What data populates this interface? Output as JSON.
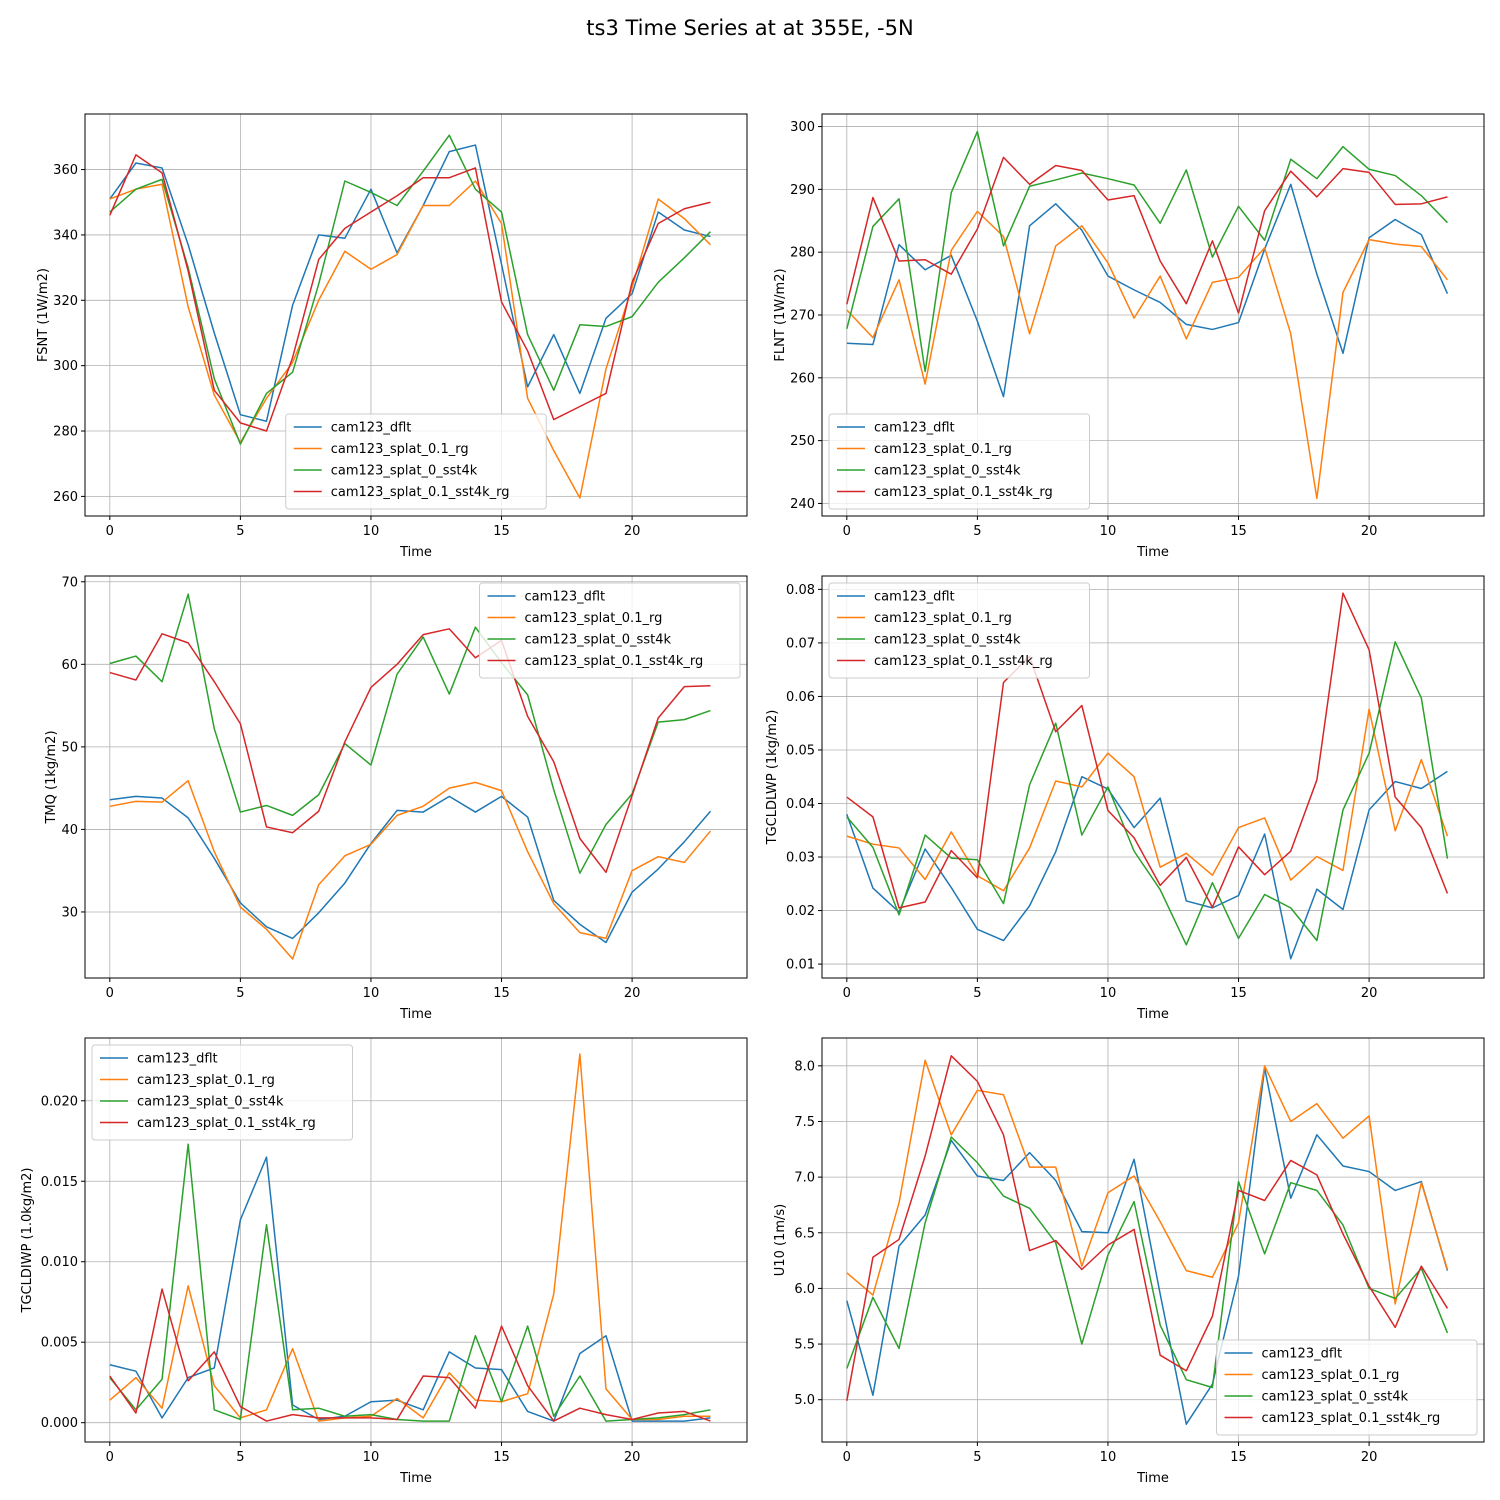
{
  "figure": {
    "title": "ts3 Time Series at at 355E, -5N"
  },
  "series_colors": [
    "#1f77b4",
    "#ff7f0e",
    "#2ca02c",
    "#d62728"
  ],
  "chart_data": [
    {
      "type": "line",
      "title": "",
      "xlabel": "Time",
      "ylabel": "FSNT (1W/m2)",
      "xlim": [
        -0.95,
        24.4
      ],
      "ylim": [
        254,
        377
      ],
      "xticks": [
        0,
        5,
        10,
        15,
        20
      ],
      "xtick_labels": [
        "0",
        "5",
        "10",
        "15",
        "20"
      ],
      "yticks": [
        260,
        280,
        300,
        320,
        340,
        360
      ],
      "ytick_labels": [
        "260",
        "280",
        "300",
        "320",
        "340",
        "360"
      ],
      "grid": true,
      "legend_loc": "lower-center",
      "x": [
        0,
        1,
        2,
        3,
        4,
        5,
        6,
        7,
        8,
        9,
        10,
        11,
        12,
        13,
        14,
        15,
        16,
        17,
        18,
        19,
        20,
        21,
        22,
        23
      ],
      "series": [
        {
          "name": "cam123_dflt",
          "values": [
            351,
            362,
            360.5,
            337,
            310,
            285,
            283,
            318.5,
            340,
            339,
            354,
            334.5,
            349,
            365.5,
            367.5,
            331,
            293.5,
            309.5,
            291.5,
            314.5,
            322,
            347,
            341.5,
            339.5
          ]
        },
        {
          "name": "cam123_splat_0.1_rg",
          "values": [
            351,
            354,
            355.5,
            318,
            291,
            276.5,
            290,
            301,
            320,
            335,
            329.5,
            334,
            349,
            349,
            356.5,
            343.5,
            290,
            274,
            259.5,
            299,
            324,
            351,
            345,
            337
          ]
        },
        {
          "name": "cam123_splat_0_sst4k",
          "values": [
            347,
            354,
            357,
            330,
            296,
            276,
            291.5,
            298,
            325,
            356.5,
            353,
            349,
            359.5,
            370.5,
            354,
            347,
            309.5,
            292.5,
            312.5,
            312,
            315,
            325.5,
            333,
            341
          ]
        },
        {
          "name": "cam123_splat_0.1_sst4k_rg",
          "values": [
            346,
            364.5,
            359,
            329,
            292.5,
            282.5,
            280,
            302.5,
            332.5,
            342,
            347,
            352,
            357.5,
            357.5,
            360.5,
            319.5,
            304.5,
            283.5,
            287.5,
            291.5,
            325.5,
            343.5,
            348,
            350
          ]
        }
      ]
    },
    {
      "type": "line",
      "title": "",
      "xlabel": "Time",
      "ylabel": "FLNT (1W/m2)",
      "xlim": [
        -0.95,
        24.4
      ],
      "ylim": [
        238,
        302
      ],
      "xticks": [
        0,
        5,
        10,
        15,
        20
      ],
      "xtick_labels": [
        "0",
        "5",
        "10",
        "15",
        "20"
      ],
      "yticks": [
        240,
        250,
        260,
        270,
        280,
        290,
        300
      ],
      "ytick_labels": [
        "240",
        "250",
        "260",
        "270",
        "280",
        "290",
        "300"
      ],
      "grid": true,
      "legend_loc": "lower-left",
      "x": [
        0,
        1,
        2,
        3,
        4,
        5,
        6,
        7,
        8,
        9,
        10,
        11,
        12,
        13,
        14,
        15,
        16,
        17,
        18,
        19,
        20,
        21,
        22,
        23
      ],
      "series": [
        {
          "name": "cam123_dflt",
          "values": [
            265.5,
            265.3,
            281.2,
            277.2,
            279.5,
            269,
            257,
            284.2,
            287.7,
            283.5,
            276.2,
            274,
            272,
            268.5,
            267.7,
            268.8,
            280.5,
            290.8,
            276.5,
            263.9,
            282.3,
            285.2,
            282.8,
            273.4
          ]
        },
        {
          "name": "cam123_splat_0.1_rg",
          "values": [
            270.8,
            266.4,
            275.6,
            259,
            280.3,
            286.5,
            282.5,
            267,
            281,
            284.2,
            278.3,
            269.5,
            276.2,
            266.2,
            275.2,
            276,
            280.7,
            267,
            240.8,
            273.6,
            282,
            281.3,
            280.9,
            275.6
          ]
        },
        {
          "name": "cam123_splat_0_sst4k",
          "values": [
            267.8,
            284.1,
            288.5,
            261,
            289.5,
            299.2,
            281,
            290.5,
            291.5,
            292.6,
            291.7,
            290.7,
            284.6,
            293.1,
            279.2,
            287.3,
            281.9,
            294.8,
            291.7,
            296.8,
            293.2,
            292.2,
            289,
            284.7
          ]
        },
        {
          "name": "cam123_splat_0.1_sst4k_rg",
          "values": [
            271.7,
            288.7,
            278.6,
            278.8,
            276.5,
            283.7,
            295.1,
            290.8,
            293.8,
            293,
            288.3,
            289,
            278.6,
            271.8,
            281.8,
            270.3,
            286.6,
            292.9,
            288.8,
            293.3,
            292.7,
            287.6,
            287.7,
            288.8
          ]
        }
      ]
    },
    {
      "type": "line",
      "title": "",
      "xlabel": "Time",
      "ylabel": "TMQ (1kg/m2)",
      "xlim": [
        -0.95,
        24.4
      ],
      "ylim": [
        22,
        70.7
      ],
      "xticks": [
        0,
        5,
        10,
        15,
        20
      ],
      "xtick_labels": [
        "0",
        "5",
        "10",
        "15",
        "20"
      ],
      "yticks": [
        30,
        40,
        50,
        60,
        70
      ],
      "ytick_labels": [
        "30",
        "40",
        "50",
        "60",
        "70"
      ],
      "grid": true,
      "legend_loc": "top-right",
      "x": [
        0,
        1,
        2,
        3,
        4,
        5,
        6,
        7,
        8,
        9,
        10,
        11,
        12,
        13,
        14,
        15,
        16,
        17,
        18,
        19,
        20,
        21,
        22,
        23
      ],
      "series": [
        {
          "name": "cam123_dflt",
          "values": [
            43.6,
            44,
            43.8,
            41.4,
            36.5,
            31.1,
            28.2,
            26.8,
            29.9,
            33.5,
            38.3,
            42.3,
            42.1,
            44,
            42.1,
            44,
            41.5,
            31.4,
            28.5,
            26.3,
            32.4,
            35.2,
            38.5,
            42.2
          ]
        },
        {
          "name": "cam123_splat_0.1_rg",
          "values": [
            42.8,
            43.4,
            43.3,
            45.9,
            37.3,
            30.6,
            27.9,
            24.3,
            33.3,
            36.8,
            38.2,
            41.7,
            42.8,
            45,
            45.7,
            44.7,
            37.3,
            31,
            27.5,
            26.8,
            35,
            36.7,
            36,
            39.8
          ]
        },
        {
          "name": "cam123_splat_0_sst4k",
          "values": [
            60.1,
            61,
            57.9,
            68.5,
            52.2,
            42.1,
            42.9,
            41.7,
            44.2,
            50.4,
            47.8,
            58.8,
            63.3,
            56.4,
            64.5,
            60.2,
            56.3,
            44.8,
            34.7,
            40.6,
            44.3,
            53,
            53.3,
            54.4
          ]
        },
        {
          "name": "cam123_splat_0.1_sst4k_rg",
          "values": [
            59,
            58.1,
            63.7,
            62.6,
            57.9,
            52.8,
            40.3,
            39.6,
            42.2,
            50.6,
            57.2,
            60,
            63.6,
            64.3,
            60.8,
            62.9,
            53.7,
            48.2,
            38.9,
            34.8,
            44.1,
            53.5,
            57.3,
            57.4
          ]
        }
      ]
    },
    {
      "type": "line",
      "title": "",
      "xlabel": "Time",
      "ylabel": "TGCLDLWP (1kg/m2)",
      "xlim": [
        -0.95,
        24.4
      ],
      "ylim": [
        0.0074,
        0.0825
      ],
      "xticks": [
        0,
        5,
        10,
        15,
        20
      ],
      "xtick_labels": [
        "0",
        "5",
        "10",
        "15",
        "20"
      ],
      "yticks": [
        0.01,
        0.02,
        0.03,
        0.04,
        0.05,
        0.06,
        0.07,
        0.08
      ],
      "ytick_labels": [
        "0.01",
        "0.02",
        "0.03",
        "0.04",
        "0.05",
        "0.06",
        "0.07",
        "0.08"
      ],
      "grid": true,
      "legend_loc": "top-left",
      "x": [
        0,
        1,
        2,
        3,
        4,
        5,
        6,
        7,
        8,
        9,
        10,
        11,
        12,
        13,
        14,
        15,
        16,
        17,
        18,
        19,
        20,
        21,
        22,
        23
      ],
      "series": [
        {
          "name": "cam123_dflt",
          "values": [
            0.038,
            0.0242,
            0.0197,
            0.0315,
            0.0243,
            0.0165,
            0.0144,
            0.0209,
            0.031,
            0.045,
            0.0427,
            0.0355,
            0.041,
            0.0218,
            0.0205,
            0.0228,
            0.0343,
            0.011,
            0.024,
            0.0202,
            0.0388,
            0.0441,
            0.0428,
            0.046
          ]
        },
        {
          "name": "cam123_splat_0.1_rg",
          "values": [
            0.0339,
            0.0324,
            0.0317,
            0.0258,
            0.0347,
            0.0265,
            0.0237,
            0.0317,
            0.0442,
            0.0431,
            0.0494,
            0.045,
            0.0281,
            0.0307,
            0.0266,
            0.0355,
            0.0373,
            0.0257,
            0.0301,
            0.0275,
            0.0576,
            0.0349,
            0.0482,
            0.0339
          ]
        },
        {
          "name": "cam123_splat_0_sst4k",
          "values": [
            0.0375,
            0.0318,
            0.0192,
            0.0341,
            0.0298,
            0.0295,
            0.0213,
            0.0435,
            0.055,
            0.0341,
            0.0431,
            0.0311,
            0.0239,
            0.0136,
            0.0252,
            0.0148,
            0.023,
            0.0205,
            0.0144,
            0.0388,
            0.0494,
            0.0702,
            0.0597,
            0.0297
          ]
        },
        {
          "name": "cam123_splat_0.1_sst4k_rg",
          "values": [
            0.0412,
            0.0375,
            0.0205,
            0.0216,
            0.0312,
            0.0261,
            0.0626,
            0.0675,
            0.0534,
            0.0583,
            0.0387,
            0.0336,
            0.0247,
            0.0299,
            0.0206,
            0.0319,
            0.0267,
            0.0311,
            0.0444,
            0.0793,
            0.0687,
            0.0412,
            0.0355,
            0.0232
          ]
        }
      ]
    },
    {
      "type": "line",
      "title": "",
      "xlabel": "Time",
      "ylabel": "TGCLDIWP (1.0kg/m2)",
      "xlim": [
        -0.95,
        24.4
      ],
      "ylim": [
        -0.0012,
        0.0239
      ],
      "xticks": [
        0,
        5,
        10,
        15,
        20
      ],
      "xtick_labels": [
        "0",
        "5",
        "10",
        "15",
        "20"
      ],
      "yticks": [
        0,
        0.005,
        0.01,
        0.015,
        0.02
      ],
      "ytick_labels": [
        "0.000",
        "0.005",
        "0.010",
        "0.015",
        "0.020"
      ],
      "grid": true,
      "legend_loc": "top-left",
      "x": [
        0,
        1,
        2,
        3,
        4,
        5,
        6,
        7,
        8,
        9,
        10,
        11,
        12,
        13,
        14,
        15,
        16,
        17,
        18,
        19,
        20,
        21,
        22,
        23
      ],
      "series": [
        {
          "name": "cam123_dflt",
          "values": [
            0.0036,
            0.0032,
            0.0003,
            0.0028,
            0.0034,
            0.0126,
            0.0165,
            0.0011,
            0.0002,
            0.0004,
            0.0013,
            0.0014,
            0.0008,
            0.0044,
            0.0034,
            0.0033,
            0.0007,
            0.0001,
            0.0043,
            0.0054,
            0.0001,
            0.0001,
            0.0001,
            0.0003
          ]
        },
        {
          "name": "cam123_splat_0.1_rg",
          "values": [
            0.0014,
            0.0028,
            0.0009,
            0.0085,
            0.0023,
            0.0003,
            0.0008,
            0.0046,
            0.0001,
            0.0003,
            0.0004,
            0.0015,
            0.0003,
            0.0031,
            0.0014,
            0.0013,
            0.0018,
            0.008,
            0.0229,
            0.0021,
            0.0002,
            0.0002,
            0.0004,
            0.0004
          ]
        },
        {
          "name": "cam123_splat_0_sst4k",
          "values": [
            0.0028,
            0.0008,
            0.0027,
            0.0173,
            0.0008,
            0.0002,
            0.0123,
            0.0008,
            0.0009,
            0.0004,
            0.0005,
            0.0002,
            0.0001,
            0.0001,
            0.0054,
            0.0013,
            0.006,
            0.0004,
            0.0029,
            0.0001,
            0.0002,
            0.0003,
            0.0005,
            0.0008
          ]
        },
        {
          "name": "cam123_splat_0.1_sst4k_rg",
          "values": [
            0.0029,
            0.0006,
            0.0083,
            0.0026,
            0.0044,
            0.001,
            0.0001,
            0.0005,
            0.0003,
            0.0003,
            0.0003,
            0.0002,
            0.0029,
            0.0028,
            0.0009,
            0.006,
            0.0023,
            0.0001,
            0.0009,
            0.0005,
            0.0002,
            0.0006,
            0.0007,
            0.0001
          ]
        }
      ]
    },
    {
      "type": "line",
      "title": "",
      "xlabel": "Time",
      "ylabel": "U10 (1m/s)",
      "xlim": [
        -0.95,
        24.4
      ],
      "ylim": [
        4.62,
        8.25
      ],
      "xticks": [
        0,
        5,
        10,
        15,
        20
      ],
      "xtick_labels": [
        "0",
        "5",
        "10",
        "15",
        "20"
      ],
      "yticks": [
        5.0,
        5.5,
        6.0,
        6.5,
        7.0,
        7.5,
        8.0
      ],
      "ytick_labels": [
        "5.0",
        "5.5",
        "6.0",
        "6.5",
        "7.0",
        "7.5",
        "8.0"
      ],
      "grid": true,
      "legend_loc": "lower-right",
      "x": [
        0,
        1,
        2,
        3,
        4,
        5,
        6,
        7,
        8,
        9,
        10,
        11,
        12,
        13,
        14,
        15,
        16,
        17,
        18,
        19,
        20,
        21,
        22,
        23
      ],
      "series": [
        {
          "name": "cam123_dflt",
          "values": [
            5.89,
            5.04,
            6.38,
            6.66,
            7.33,
            7.01,
            6.97,
            7.22,
            6.97,
            6.51,
            6.5,
            7.16,
            5.95,
            4.78,
            5.14,
            6.11,
            7.98,
            6.81,
            7.38,
            7.1,
            7.05,
            6.88,
            6.96,
            6.16
          ]
        },
        {
          "name": "cam123_splat_0.1_rg",
          "values": [
            6.14,
            5.94,
            6.77,
            8.05,
            7.38,
            7.78,
            7.74,
            7.09,
            7.09,
            6.2,
            6.86,
            7.01,
            6.6,
            6.16,
            6.1,
            6.59,
            8.0,
            7.5,
            7.66,
            7.35,
            7.55,
            5.86,
            6.95,
            6.17
          ]
        },
        {
          "name": "cam123_splat_0_sst4k",
          "values": [
            5.28,
            5.92,
            5.46,
            6.59,
            7.36,
            7.13,
            6.83,
            6.72,
            6.41,
            5.5,
            6.3,
            6.78,
            5.67,
            5.18,
            5.11,
            6.96,
            6.31,
            6.95,
            6.88,
            6.57,
            6.0,
            5.91,
            6.18,
            5.6
          ]
        },
        {
          "name": "cam123_splat_0.1_sst4k_rg",
          "values": [
            4.99,
            6.28,
            6.44,
            7.19,
            8.09,
            7.86,
            7.38,
            6.34,
            6.43,
            6.17,
            6.39,
            6.53,
            5.4,
            5.26,
            5.75,
            6.88,
            6.79,
            7.15,
            7.02,
            6.49,
            6.02,
            5.65,
            6.2,
            5.82
          ]
        }
      ]
    }
  ]
}
